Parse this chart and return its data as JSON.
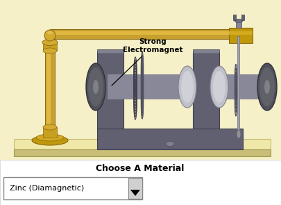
{
  "bg_color": "#ffffff",
  "apparatus_bg": "#f5f0c8",
  "title_text": "Choose A Material",
  "dropdown_text": "Zinc (Diamagnetic)",
  "label_text": "Strong\nElectromagnet",
  "brass_color": "#c8a030",
  "brass_dark": "#8a6a10",
  "brass_light": "#e8c060",
  "magnet_dark": "#4a4a58",
  "magnet_mid": "#606070",
  "magnet_light": "#808090",
  "screw_light": "#c0c0c8",
  "screw_mid": "#909098",
  "platform_top": "#f0e8a8",
  "platform_side": "#c8be78"
}
